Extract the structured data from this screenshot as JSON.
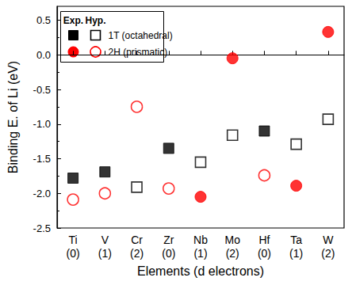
{
  "chart_data": {
    "type": "scatter",
    "y_label": "Binding E. of Li (eV)",
    "x_label": "Elements (d electrons)",
    "categories": [
      "Ti\n(0)",
      "V\n(1)",
      "Cr\n(2)",
      "Zr\n(0)",
      "Nb\n(1)",
      "Mo\n(2)",
      "Hf\n(0)",
      "Ta\n(1)",
      "W\n(2)"
    ],
    "legend_columns": [
      "Exp.",
      "Hyp."
    ],
    "series": [
      {
        "name": "1T (octahedral)",
        "column": "Exp.",
        "color": "#000000",
        "marker": "square-filled",
        "values": [
          -1.78,
          -1.69,
          null,
          -1.35,
          null,
          null,
          -1.1,
          null,
          null
        ]
      },
      {
        "name": "1T (octahedral)",
        "column": "Hyp.",
        "color": "#000000",
        "marker": "square-open",
        "values": [
          null,
          null,
          -1.91,
          null,
          -1.55,
          -1.16,
          null,
          -1.29,
          -0.93
        ]
      },
      {
        "name": "2H (prismatic)",
        "column": "Exp.",
        "color": "#ff0000",
        "marker": "circle-filled",
        "values": [
          null,
          null,
          null,
          null,
          -2.05,
          -0.05,
          null,
          -1.89,
          0.33
        ]
      },
      {
        "name": "2H (prismatic)",
        "column": "Hyp.",
        "color": "#ff0000",
        "marker": "circle-open",
        "values": [
          -2.09,
          -2.0,
          -0.75,
          -1.93,
          null,
          null,
          -1.74,
          null,
          null
        ]
      }
    ],
    "ylim": [
      -2.5,
      0.7
    ],
    "yticks": [
      -2.5,
      {
        "value": -2,
        "label": "-2.0"
      },
      -1.5,
      {
        "value": -1,
        "label": "-1.0"
      },
      -0.5,
      {
        "value": 0,
        "label": "0.0"
      },
      0.5
    ],
    "grid": false,
    "legend": "upper left"
  }
}
